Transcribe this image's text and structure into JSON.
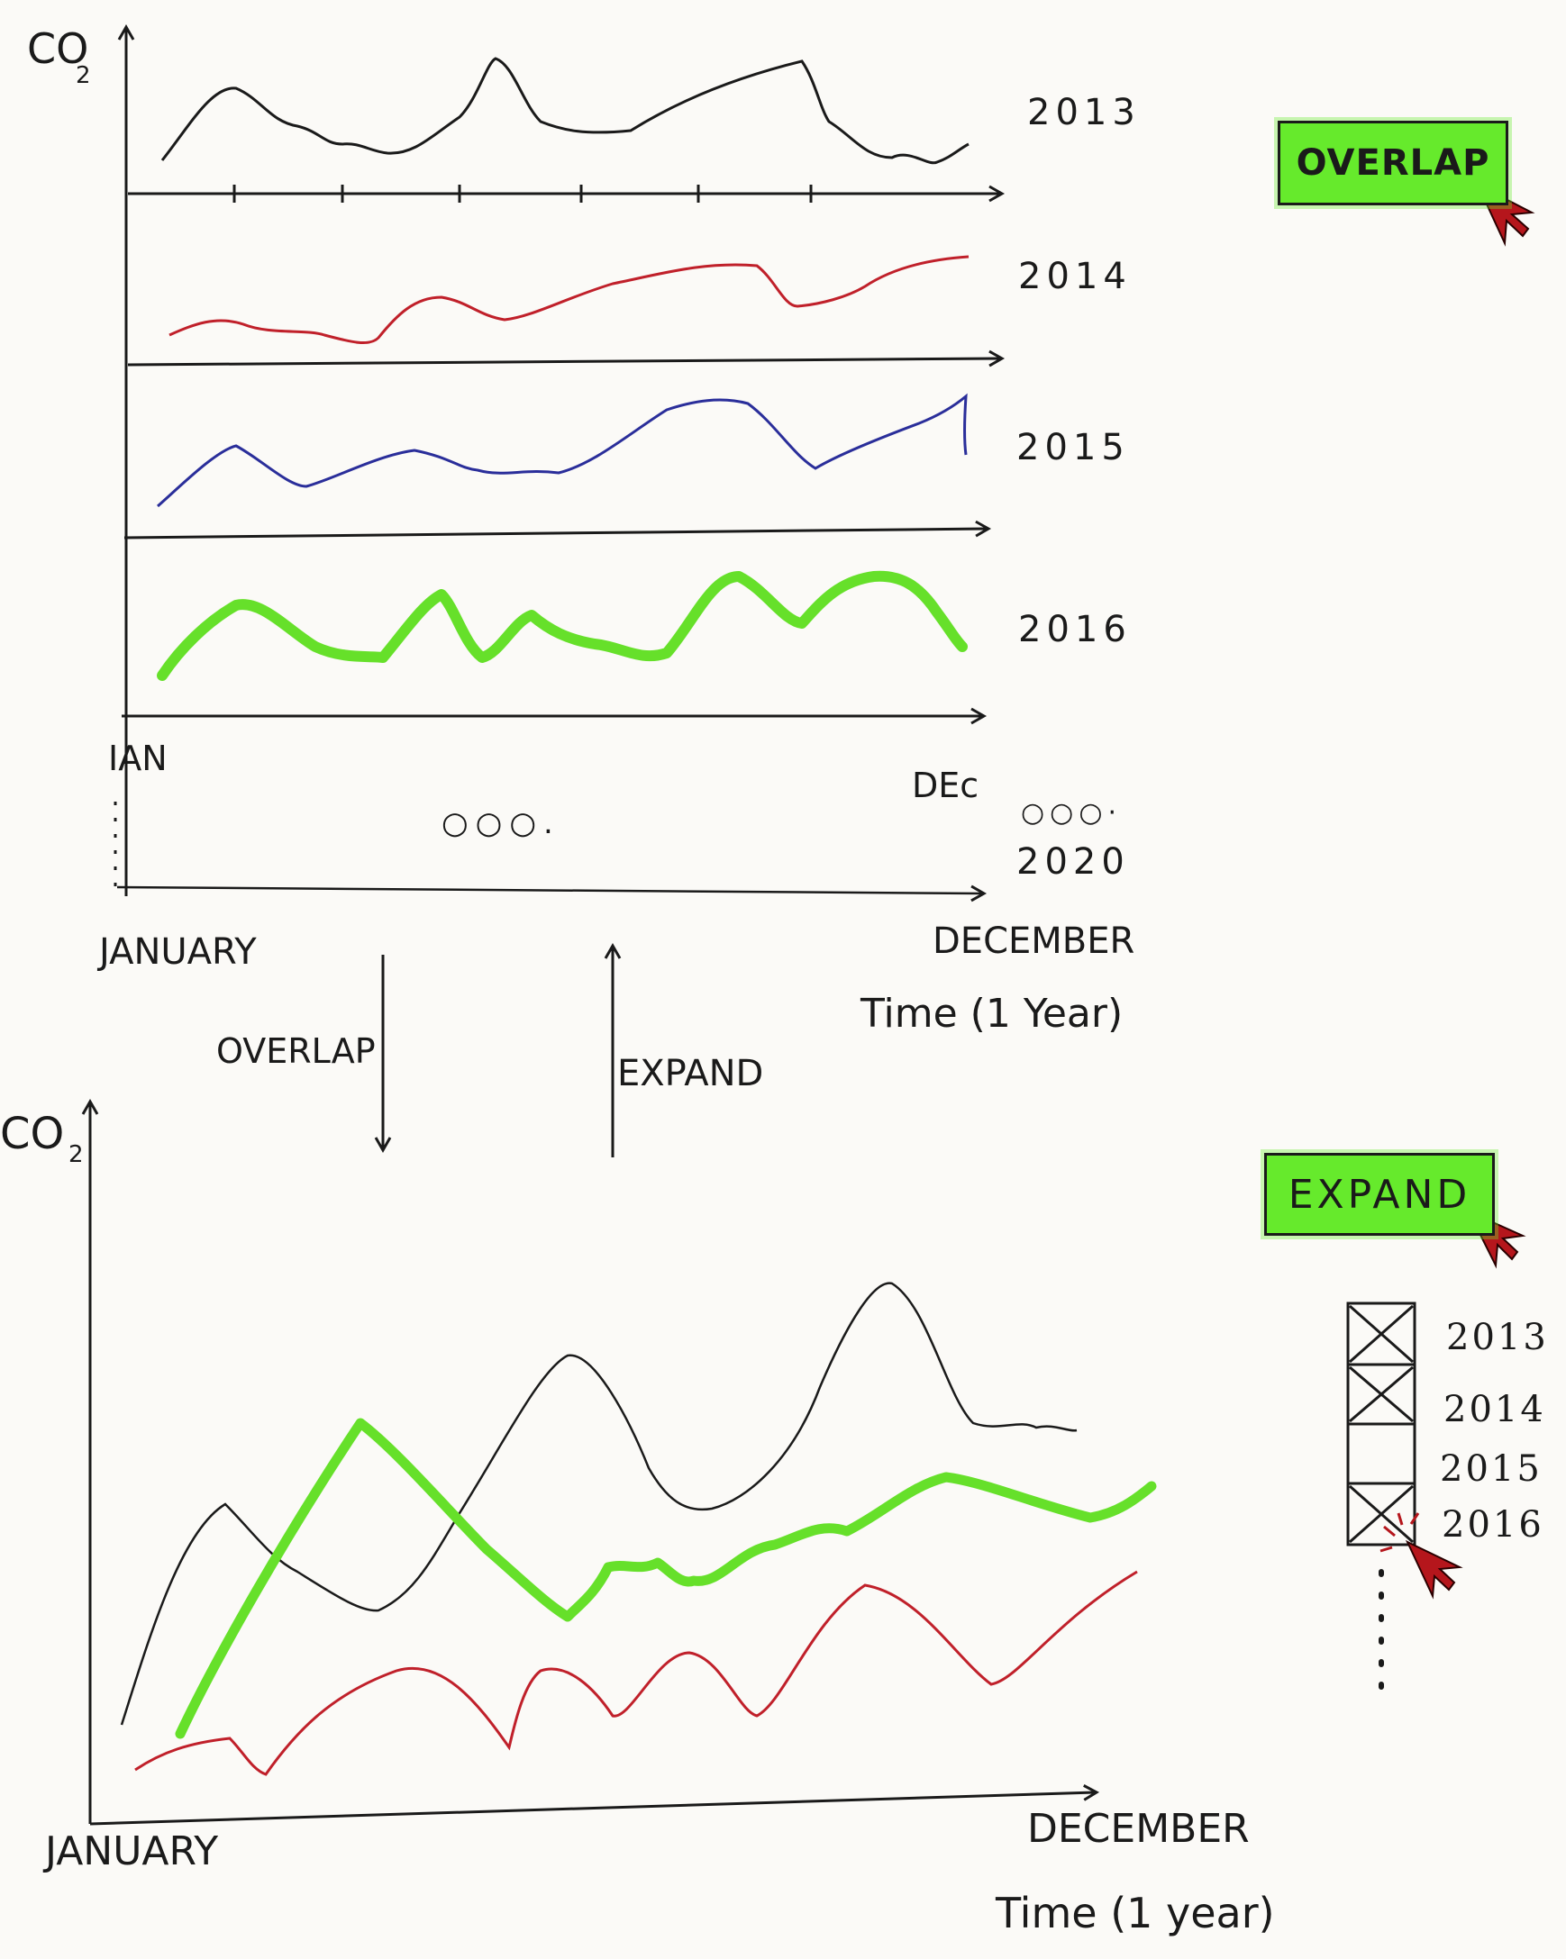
{
  "top_view": {
    "y_label": "CO",
    "y_label_sub": "2",
    "start_label": "IAN",
    "end_label": "DEc",
    "ellipsis_center": "○○○.",
    "ellipsis_side": "○○○·",
    "rows": [
      {
        "year": "2013",
        "color": "#1a1a1a"
      },
      {
        "year": "2014",
        "color": "#c0202a"
      },
      {
        "year": "2015",
        "color": "#2a2e9a"
      },
      {
        "year": "2016",
        "color": "#66e02a"
      },
      {
        "year": "2020",
        "color": "#1a1a1a"
      }
    ],
    "x_start": "JANUARY",
    "x_end": "DECEMBER",
    "x_title": "Time (1 Year)"
  },
  "transitions": {
    "down_label": "OVERLAP",
    "up_label": "EXPAND"
  },
  "buttons": {
    "overlap_label": "OVERLAP",
    "expand_label": "EXPAND"
  },
  "bottom_view": {
    "y_label": "CO",
    "y_label_sub": "2",
    "x_start": "JANUARY",
    "x_end": "DECEMBER",
    "x_title": "Time (1 year)",
    "series_colors": {
      "2013": "#1a1a1a",
      "2014": "#c0202a",
      "2016": "#66e02a"
    }
  },
  "legend_checkboxes": [
    {
      "label": "2013",
      "checked": true
    },
    {
      "label": "2014",
      "checked": true
    },
    {
      "label": "2015",
      "checked": false
    },
    {
      "label": "2016",
      "checked": true
    }
  ],
  "icons": [
    "cursor-icon",
    "up-arrow-icon",
    "down-arrow-icon"
  ]
}
